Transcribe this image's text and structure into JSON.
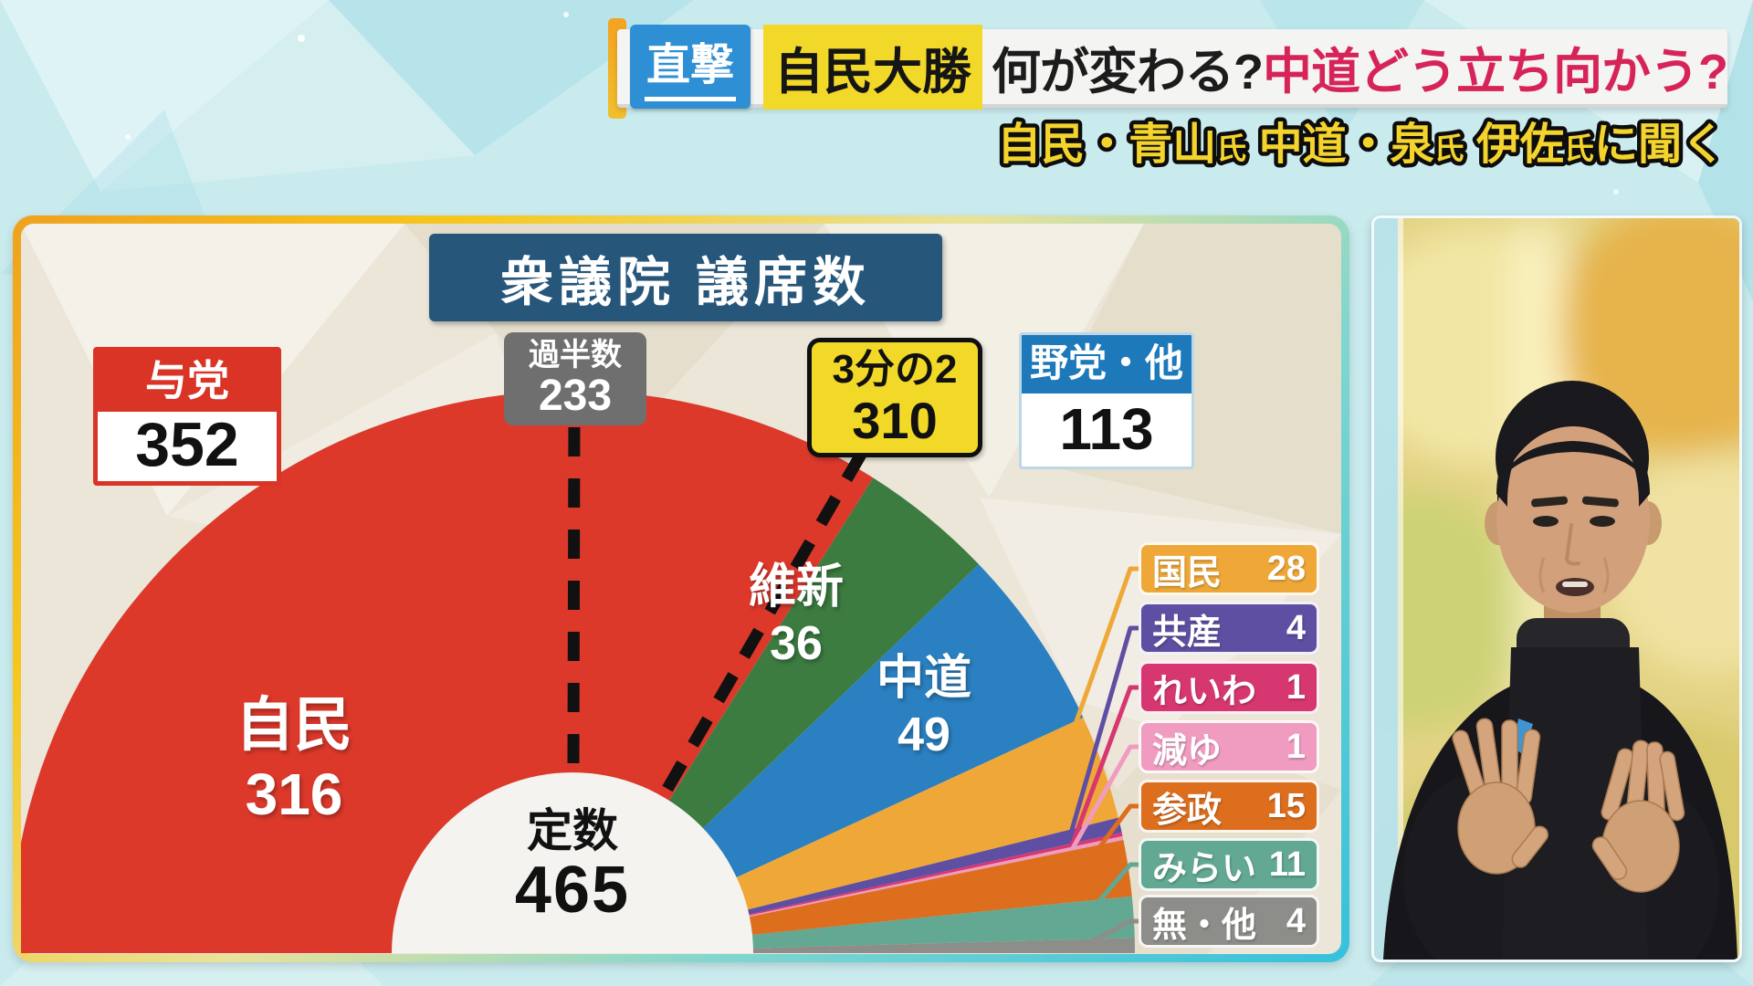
{
  "header": {
    "tag": "直撃",
    "emphasis": "自民大勝",
    "question_black": "何が変わる?",
    "question_red": "中道どう立ち向かう?"
  },
  "subheading": {
    "segments": [
      {
        "text": "自民・青山",
        "size": "large"
      },
      {
        "text": "氏",
        "size": "small"
      },
      {
        "text": " 中道・泉",
        "size": "large"
      },
      {
        "text": "氏",
        "size": "small"
      },
      {
        "text": " 伊佐",
        "size": "large"
      },
      {
        "text": "氏",
        "size": "small"
      },
      {
        "text": "に聞く",
        "size": "large"
      }
    ],
    "text_color": "#f3d32c",
    "outline_color": "#0d0d0d"
  },
  "panel": {
    "title": "衆議院 議席数",
    "ruling_box": {
      "label": "与党",
      "value": "352",
      "color": "#d93425"
    },
    "majority_box": {
      "label": "過半数",
      "value": "233",
      "color": "#6f6f6f"
    },
    "two_thirds_box": {
      "label": "3分の2",
      "value": "310",
      "color": "#f2d928"
    },
    "opposition_box": {
      "label": "野党・他",
      "value": "113",
      "color": "#1e79ba"
    },
    "capacity": {
      "label": "定数",
      "value": "465"
    }
  },
  "chart_data": {
    "type": "pie",
    "layout": "semicircle-donut",
    "title": "衆議院 議席数",
    "total": 465,
    "total_label": "定数",
    "series": [
      {
        "name": "自民",
        "value": 316,
        "color": "#dc392b"
      },
      {
        "name": "維新",
        "value": 36,
        "color": "#3d7c40"
      },
      {
        "name": "中道",
        "value": 49,
        "color": "#2b80c1"
      },
      {
        "name": "国民",
        "value": 28,
        "color": "#efa838"
      },
      {
        "name": "共産",
        "value": 4,
        "color": "#5e4fa2"
      },
      {
        "name": "れいわ",
        "value": 1,
        "color": "#d63771"
      },
      {
        "name": "減ゆ",
        "value": 1,
        "color": "#f09cc0"
      },
      {
        "name": "参政",
        "value": 15,
        "color": "#dc6e1e"
      },
      {
        "name": "みらい",
        "value": 11,
        "color": "#62a893"
      },
      {
        "name": "無・他",
        "value": 4,
        "color": "#8d8d89"
      }
    ],
    "markers": [
      {
        "label": "過半数",
        "value": 233
      },
      {
        "label": "3分の2",
        "value": 310
      }
    ],
    "groups": [
      {
        "label": "与党",
        "value": 352
      },
      {
        "label": "野党・他",
        "value": 113
      }
    ],
    "inside_label_indices": [
      0,
      1,
      2
    ],
    "callout_label_indices": [
      3,
      4,
      5,
      6,
      7,
      8,
      9
    ]
  },
  "colors": {
    "background": "#c9ebee",
    "header_bar": "#f4f4f2",
    "tag_blue": "#2e8fd4",
    "highlight_yellow": "#f2d829",
    "headline_red": "#d62458",
    "panel_title_navy": "#27567b",
    "panel_face": "#ebe6d8",
    "panel_border_orange": "#f0a11e",
    "panel_border_cyan": "#35c1dc",
    "marker_dash": "#111111"
  }
}
